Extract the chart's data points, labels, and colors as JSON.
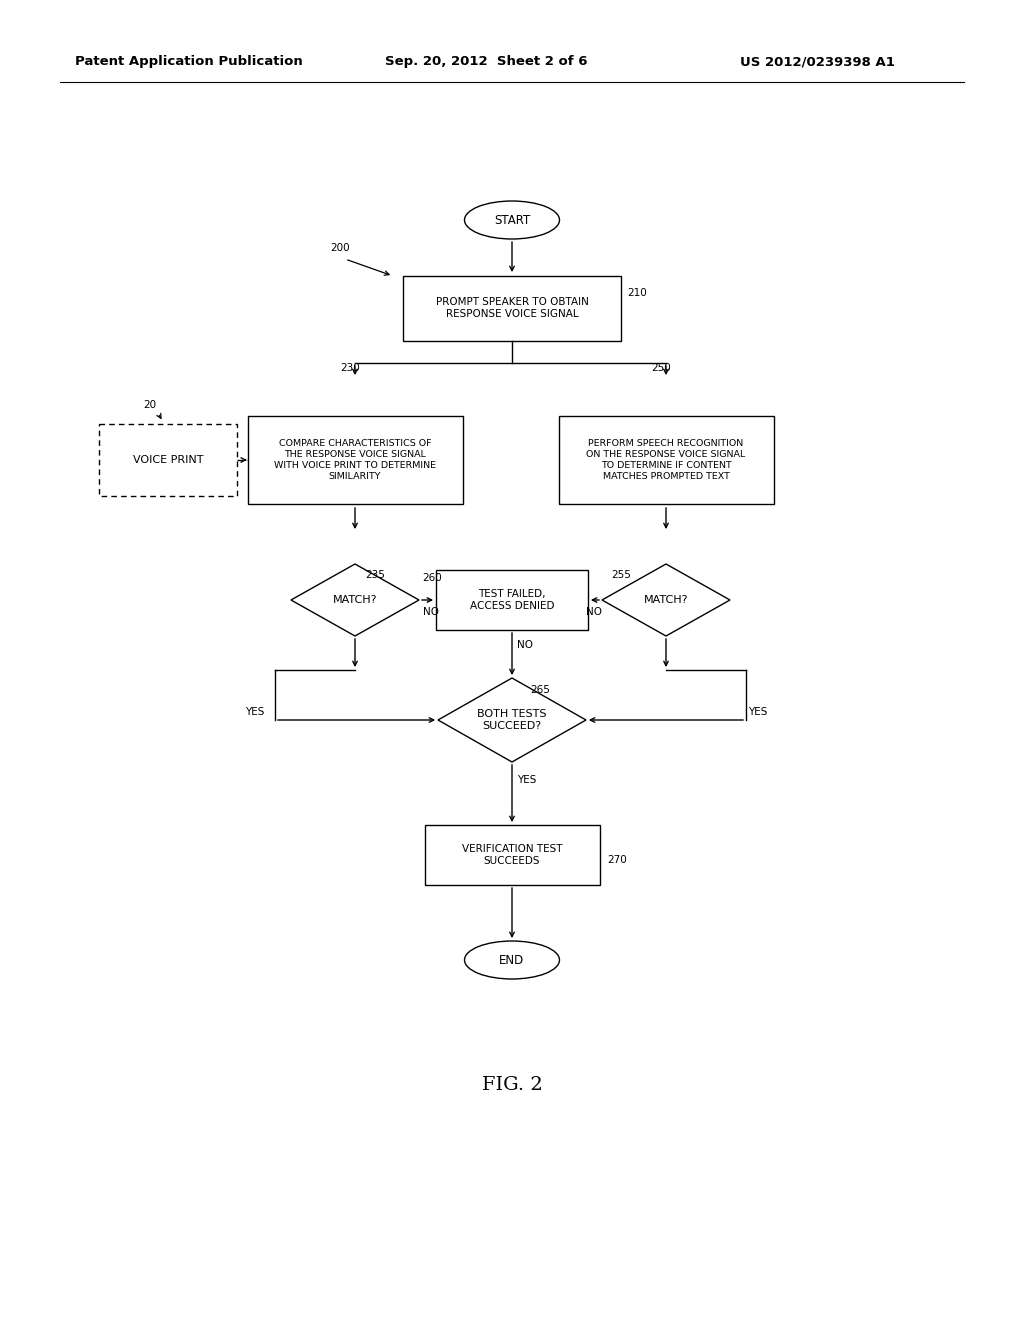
{
  "background_color": "#ffffff",
  "header_left": "Patent Application Publication",
  "header_mid": "Sep. 20, 2012  Sheet 2 of 6",
  "header_right": "US 2012/0239398 A1",
  "figure_label": "FIG. 2"
}
